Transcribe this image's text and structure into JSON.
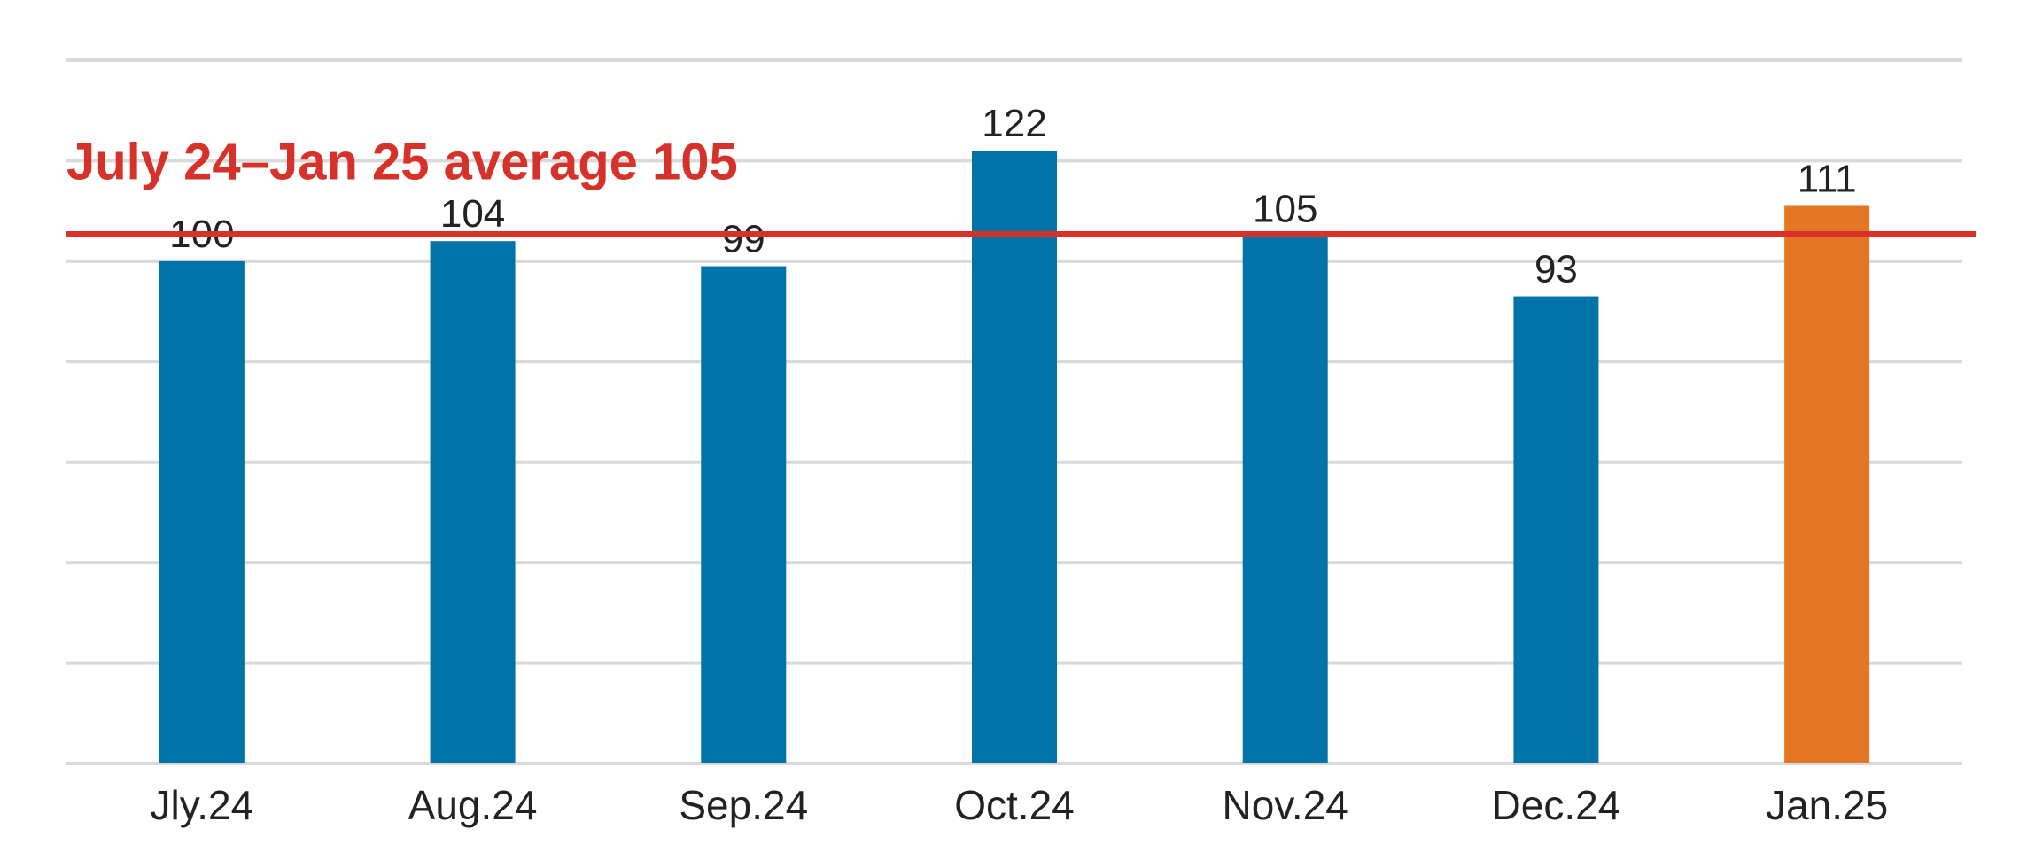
{
  "chart_data": {
    "type": "bar",
    "categories": [
      "Jly.24",
      "Aug.24",
      "Sep.24",
      "Oct.24",
      "Nov.24",
      "Dec.24",
      "Jan.25"
    ],
    "values": [
      100,
      104,
      99,
      122,
      105,
      93,
      111
    ],
    "value_labels": [
      "100",
      "104",
      "99",
      "122",
      "105",
      "93",
      "111"
    ],
    "ylim": [
      0,
      140
    ],
    "y_gridline_step": 20,
    "grid": true,
    "bar_colors": [
      "#0074A8",
      "#0074A8",
      "#0074A8",
      "#0074A8",
      "#0074A8",
      "#0074A8",
      "#E57624"
    ],
    "reference_line": {
      "value": 105,
      "label": "July 24–Jan 25 average 105",
      "color": "#D7322A"
    },
    "title": "",
    "xlabel": "",
    "ylabel": ""
  }
}
